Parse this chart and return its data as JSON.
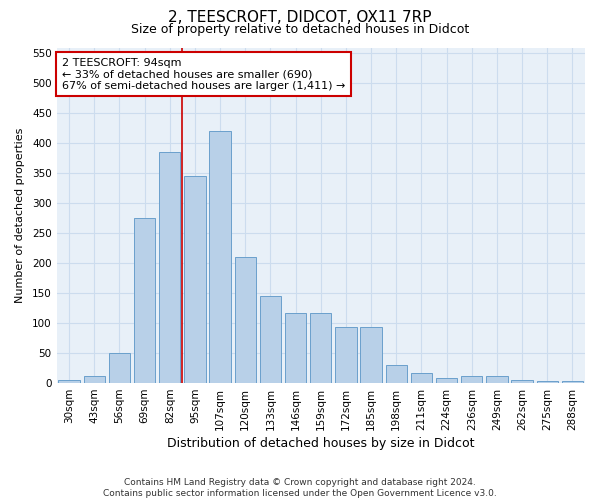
{
  "title": "2, TEESCROFT, DIDCOT, OX11 7RP",
  "subtitle": "Size of property relative to detached houses in Didcot",
  "xlabel": "Distribution of detached houses by size in Didcot",
  "ylabel": "Number of detached properties",
  "categories": [
    "30sqm",
    "43sqm",
    "56sqm",
    "69sqm",
    "82sqm",
    "95sqm",
    "107sqm",
    "120sqm",
    "133sqm",
    "146sqm",
    "159sqm",
    "172sqm",
    "185sqm",
    "198sqm",
    "211sqm",
    "224sqm",
    "236sqm",
    "249sqm",
    "262sqm",
    "275sqm",
    "288sqm"
  ],
  "values": [
    5,
    12,
    50,
    275,
    385,
    345,
    420,
    210,
    145,
    117,
    117,
    93,
    93,
    30,
    17,
    8,
    12,
    12,
    5,
    3,
    3
  ],
  "bar_color": "#b8d0e8",
  "bar_edge_color": "#6aa0cc",
  "annotation_text": "2 TEESCROFT: 94sqm\n← 33% of detached houses are smaller (690)\n67% of semi-detached houses are larger (1,411) →",
  "annotation_box_color": "#ffffff",
  "annotation_box_edge": "#cc0000",
  "vline_x": 4.5,
  "vline_color": "#cc0000",
  "ylim": [
    0,
    560
  ],
  "yticks": [
    0,
    50,
    100,
    150,
    200,
    250,
    300,
    350,
    400,
    450,
    500,
    550
  ],
  "grid_color": "#ccdcee",
  "background_color": "#e8f0f8",
  "footer_line1": "Contains HM Land Registry data © Crown copyright and database right 2024.",
  "footer_line2": "Contains public sector information licensed under the Open Government Licence v3.0.",
  "title_fontsize": 11,
  "subtitle_fontsize": 9,
  "xlabel_fontsize": 9,
  "ylabel_fontsize": 8,
  "tick_fontsize": 7.5,
  "annot_fontsize": 8,
  "footer_fontsize": 6.5
}
